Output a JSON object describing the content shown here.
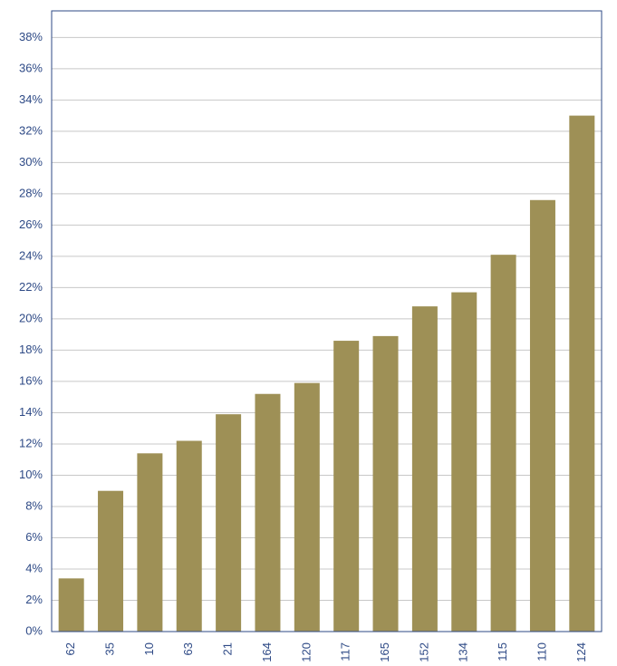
{
  "chart_data": {
    "type": "bar",
    "categories": [
      "62",
      "35",
      "10",
      "63",
      "21",
      "164",
      "120",
      "117",
      "165",
      "152",
      "134",
      "115",
      "110",
      "124"
    ],
    "values": [
      3.4,
      9.0,
      11.4,
      12.2,
      13.9,
      15.2,
      15.9,
      18.6,
      18.9,
      20.8,
      21.7,
      24.1,
      27.6,
      33.0
    ],
    "color": "#9e9056",
    "ylim": [
      0,
      39.7
    ],
    "yticks": [
      {
        "value": 0,
        "label": "0%"
      },
      {
        "value": 2,
        "label": "2%"
      },
      {
        "value": 4,
        "label": "4%"
      },
      {
        "value": 6,
        "label": "6%"
      },
      {
        "value": 8,
        "label": "8%"
      },
      {
        "value": 10,
        "label": "10%"
      },
      {
        "value": 12,
        "label": "12%"
      },
      {
        "value": 14,
        "label": "14%"
      },
      {
        "value": 16,
        "label": "16%"
      },
      {
        "value": 18,
        "label": "18%"
      },
      {
        "value": 20,
        "label": "20%"
      },
      {
        "value": 22,
        "label": "22%"
      },
      {
        "value": 24,
        "label": "24%"
      },
      {
        "value": 26,
        "label": "26%"
      },
      {
        "value": 28,
        "label": "28%"
      },
      {
        "value": 30,
        "label": "30%"
      },
      {
        "value": 32,
        "label": "32%"
      },
      {
        "value": 34,
        "label": "34%"
      },
      {
        "value": 36,
        "label": "36%"
      },
      {
        "value": 38,
        "label": "38%"
      }
    ],
    "grid": true
  }
}
